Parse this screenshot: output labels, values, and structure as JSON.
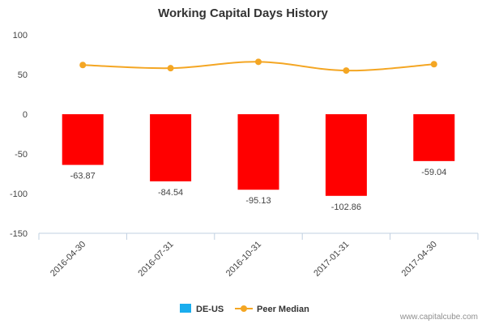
{
  "chart_data": {
    "type": "bar",
    "title": "Working Capital Days History",
    "xlabel": "",
    "ylabel": "",
    "categories": [
      "2016-04-30",
      "2016-07-31",
      "2016-10-31",
      "2017-01-31",
      "2017-04-30"
    ],
    "ylim": [
      -150,
      100
    ],
    "yticks": [
      100,
      50,
      0,
      -50,
      -100,
      -150
    ],
    "grid": false,
    "legend_position": "bottom",
    "series": [
      {
        "name": "DE-US",
        "kind": "bar",
        "values": [
          -63.87,
          -84.54,
          -95.13,
          -102.86,
          -59.04
        ],
        "labels": [
          "-63.87",
          "-84.54",
          "-95.13",
          "-102.86",
          "-59.04"
        ],
        "color": "#ff0000",
        "legend_color": "#1aadee"
      },
      {
        "name": "Peer Median",
        "kind": "line",
        "values": [
          62,
          58,
          66,
          55,
          63
        ],
        "color": "#f4a623"
      }
    ]
  },
  "credit": "www.capitalcube.com"
}
